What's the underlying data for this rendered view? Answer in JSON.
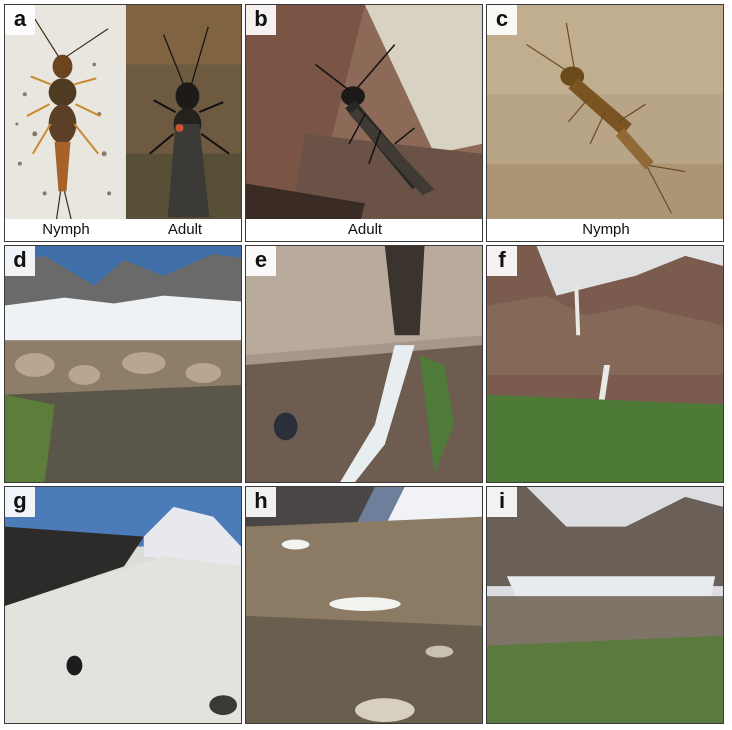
{
  "panels": [
    {
      "letter": "a",
      "captions": [
        "Nymph",
        "Adult"
      ]
    },
    {
      "letter": "b",
      "caption": "Adult"
    },
    {
      "letter": "c",
      "caption": "Nymph"
    },
    {
      "letter": "d"
    },
    {
      "letter": "e"
    },
    {
      "letter": "f"
    },
    {
      "letter": "g"
    },
    {
      "letter": "h"
    },
    {
      "letter": "i"
    }
  ]
}
